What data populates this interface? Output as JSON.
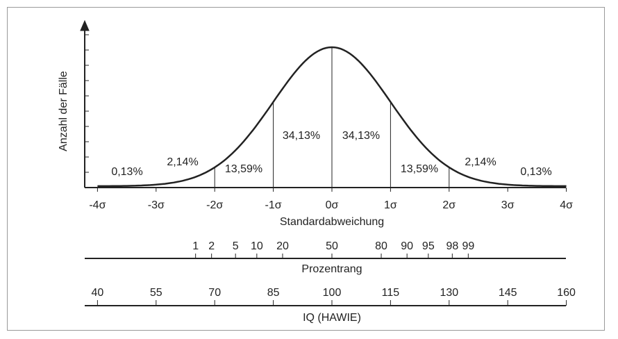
{
  "y_axis_label": "Anzahl der Fälle",
  "x_axis_label": "Standardabweichung",
  "sigma_labels": [
    "-4σ",
    "-3σ",
    "-2σ",
    "-1σ",
    "0σ",
    "1σ",
    "2σ",
    "3σ",
    "4σ"
  ],
  "region_labels": [
    "0,13%",
    "2,14%",
    "13,59%",
    "34,13%",
    "34,13%",
    "13,59%",
    "2,14%",
    "0,13%"
  ],
  "percentile_scale": {
    "label": "Prozentrang",
    "ticks": [
      1,
      2,
      5,
      10,
      20,
      50,
      80,
      90,
      95,
      98,
      99
    ]
  },
  "iq_scale": {
    "label": "IQ (HAWIE)",
    "ticks": [
      40,
      55,
      70,
      85,
      100,
      115,
      130,
      145,
      160
    ]
  }
}
